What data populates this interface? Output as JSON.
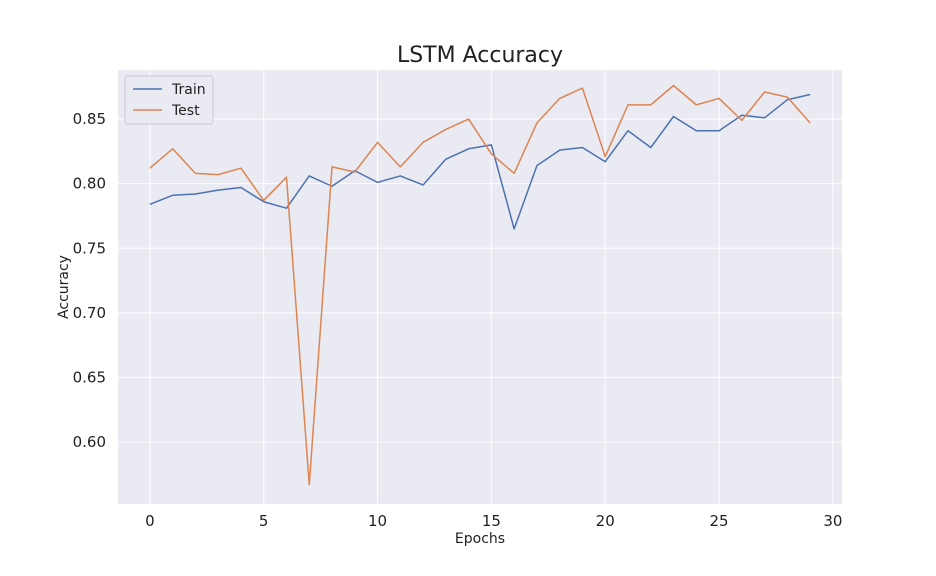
{
  "chart_data": {
    "type": "line",
    "title": "LSTM Accuracy",
    "xlabel": "Epochs",
    "ylabel": "Accuracy",
    "xlim": [
      -1.4,
      30.4
    ],
    "ylim": [
      0.552,
      0.888
    ],
    "xticks": [
      0,
      5,
      10,
      15,
      20,
      25,
      30
    ],
    "yticks": [
      0.6,
      0.65,
      0.7,
      0.75,
      0.8,
      0.85
    ],
    "xtick_labels": [
      "0",
      "5",
      "10",
      "15",
      "20",
      "25",
      "30"
    ],
    "ytick_labels": [
      "0.60",
      "0.65",
      "0.70",
      "0.75",
      "0.80",
      "0.85"
    ],
    "grid": true,
    "legend_position": "top-left",
    "x": [
      0,
      1,
      2,
      3,
      4,
      5,
      6,
      7,
      8,
      9,
      10,
      11,
      12,
      13,
      14,
      15,
      16,
      17,
      18,
      19,
      20,
      21,
      22,
      23,
      24,
      25,
      26,
      27,
      28,
      29
    ],
    "series": [
      {
        "name": "Train",
        "color": "#4c72b0",
        "values": [
          0.784,
          0.791,
          0.792,
          0.795,
          0.797,
          0.786,
          0.781,
          0.806,
          0.798,
          0.81,
          0.801,
          0.806,
          0.799,
          0.819,
          0.827,
          0.83,
          0.765,
          0.814,
          0.826,
          0.828,
          0.817,
          0.841,
          0.828,
          0.852,
          0.841,
          0.841,
          0.853,
          0.851,
          0.865,
          0.869
        ]
      },
      {
        "name": "Test",
        "color": "#dd8452",
        "values": [
          0.812,
          0.827,
          0.808,
          0.807,
          0.812,
          0.787,
          0.805,
          0.567,
          0.813,
          0.809,
          0.832,
          0.813,
          0.832,
          0.842,
          0.85,
          0.823,
          0.808,
          0.847,
          0.866,
          0.874,
          0.821,
          0.861,
          0.861,
          0.876,
          0.861,
          0.866,
          0.849,
          0.871,
          0.867,
          0.847
        ]
      }
    ]
  },
  "colors": {
    "plot_background": "#eaeaf2",
    "grid": "#ffffff"
  }
}
